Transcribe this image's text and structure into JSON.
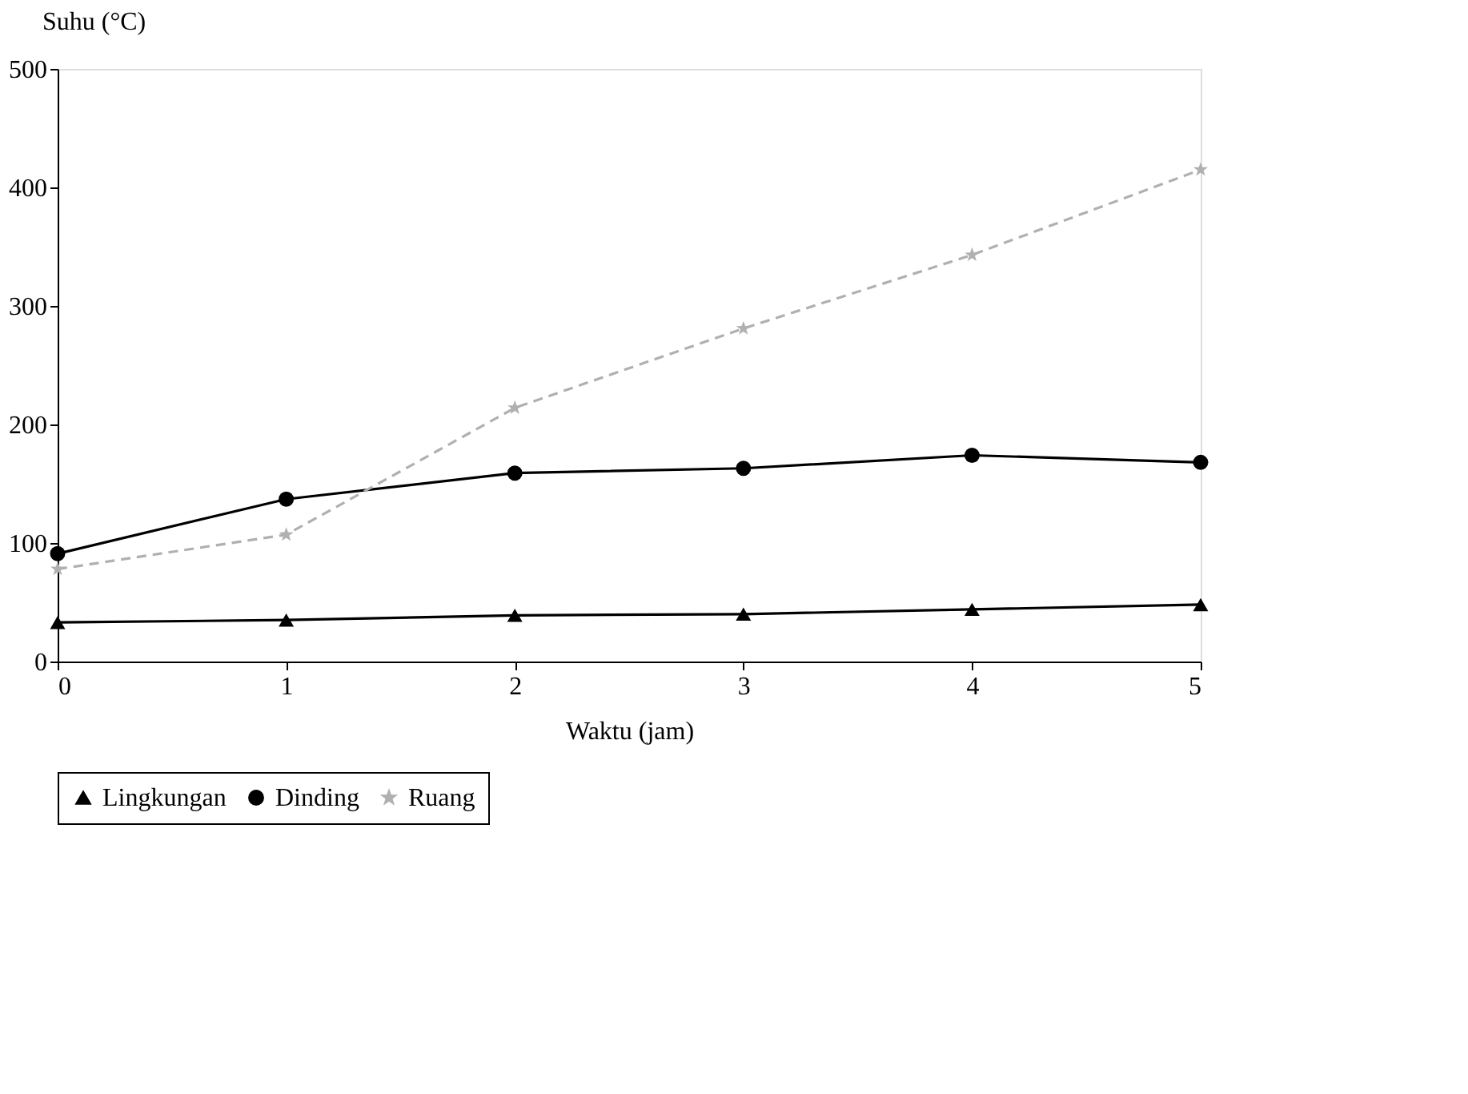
{
  "chart_data": {
    "type": "line",
    "xlabel": "Waktu (jam)",
    "ylabel": "Suhu (°C)",
    "x": [
      0,
      1,
      2,
      3,
      4,
      5
    ],
    "series": [
      {
        "name": "Lingkungan",
        "color": "#000000",
        "marker": "triangle",
        "line_style": "solid",
        "values": [
          33,
          35,
          39,
          40,
          44,
          48
        ]
      },
      {
        "name": "Dinding",
        "color": "#000000",
        "marker": "circle",
        "line_style": "solid",
        "values": [
          91,
          137,
          159,
          163,
          174,
          168
        ]
      },
      {
        "name": "Ruang",
        "color": "#b0b0b0",
        "marker": "star",
        "line_style": "dashed",
        "values": [
          78,
          107,
          214,
          281,
          343,
          415
        ]
      }
    ],
    "xlim": [
      0,
      5
    ],
    "xticks": [
      0,
      1,
      2,
      3,
      4,
      5
    ],
    "ylim": [
      0,
      500
    ],
    "yticks": [
      0,
      100,
      200,
      300,
      400,
      500
    ],
    "grid": false,
    "legend": "bottom"
  }
}
